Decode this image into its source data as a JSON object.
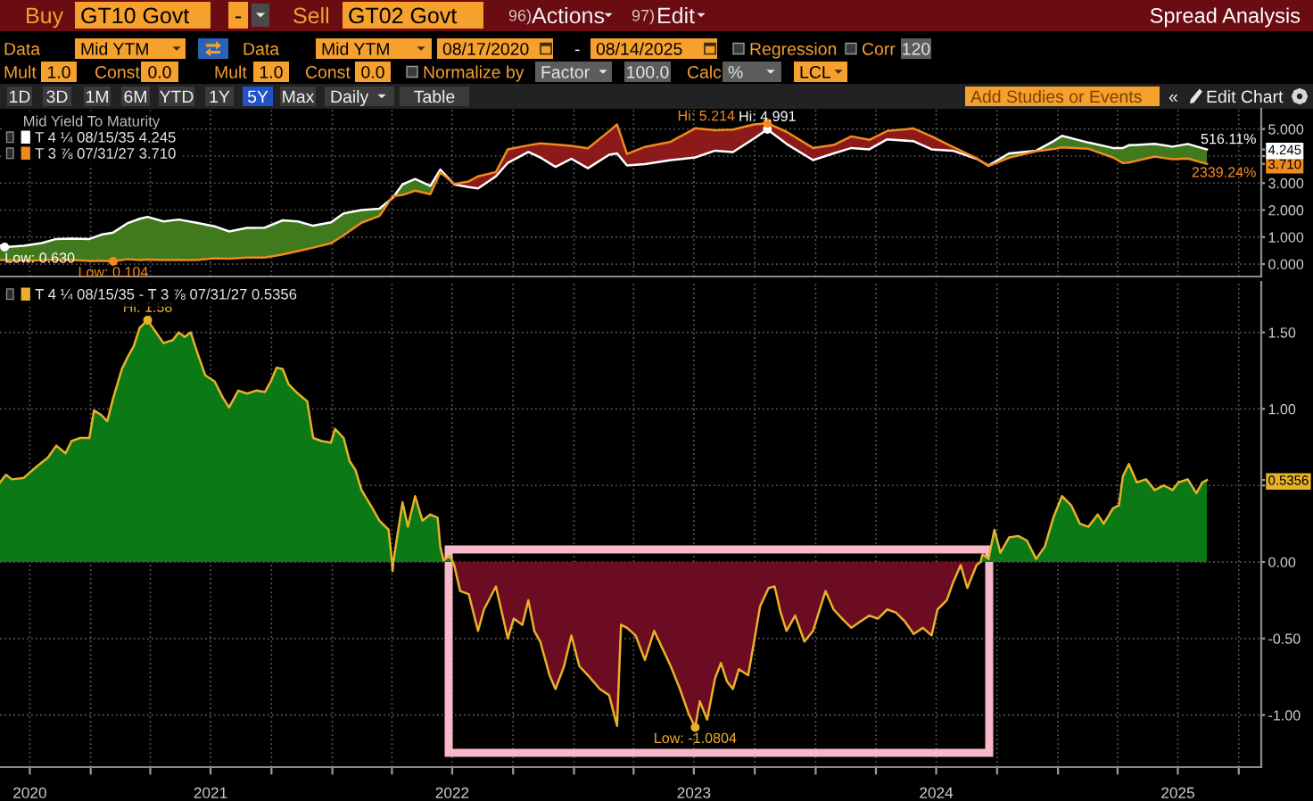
{
  "chart_data": [
    {
      "type": "other",
      "title": "Spread Analysis",
      "annotations": [
        "Buy",
        "GT10 Govt",
        "-",
        "Sell",
        "GT02 Govt",
        "96)",
        "Actions",
        "97)",
        "Edit",
        "Data",
        "Mid YTM",
        "Data",
        "Mid YTM",
        "08/17/2020",
        "-",
        "08/14/2025",
        "Regression",
        "Corr",
        "120",
        "Mult",
        "1.0",
        "Const",
        "0.0",
        "Mult",
        "1.0",
        "Const",
        "0.0",
        "Normalize by",
        "Factor",
        "100.0",
        "Calc",
        "%",
        "LCL",
        "1D",
        "3D",
        "1M",
        "6M",
        "YTD",
        "1Y",
        "5Y",
        "Max",
        "Daily",
        "Table",
        "Add Studies or Events",
        "«",
        "Edit Chart"
      ]
    },
    {
      "type": "line",
      "legend": "top left",
      "legend_title": "Mid Yield To Maturity",
      "grid": true,
      "tick_labels": "y",
      "xlim": [
        "2020-08-17",
        "2025-11-04"
      ],
      "ylim": [
        -0.46,
        5.75
      ],
      "xticks": [
        "2020-10-01",
        "2021-01-01",
        "2021-04-01",
        "2021-07-01",
        "2021-10-01",
        "2022-01-01",
        "2022-04-01",
        "2022-07-01",
        "2022-10-01",
        "2023-01-01",
        "2023-04-01",
        "2023-07-01",
        "2023-10-01",
        "2024-01-01",
        "2024-04-01",
        "2024-07-01",
        "2024-10-01",
        "2025-01-01",
        "2025-04-01",
        "2025-07-01",
        "2025-10-01"
      ],
      "yticks": [
        {
          "value": 0,
          "label": "0.000"
        },
        {
          "value": 1,
          "label": "1.000"
        },
        {
          "value": 2,
          "label": "2.000"
        },
        {
          "value": 3,
          "label": "3.000"
        },
        {
          "value": 3.71,
          "label": "3.710"
        },
        {
          "value": 4,
          "label": null
        },
        {
          "value": 4.245,
          "label": "4.245"
        },
        {
          "value": 5,
          "label": "5.000"
        }
      ],
      "x": [
        "2020-08-17",
        "2020-08-24",
        "2020-09-22",
        "2020-10-19",
        "2020-11-10",
        "2020-12-03",
        "2020-12-30",
        "2021-01-17",
        "2021-02-04",
        "2021-02-26",
        "2021-03-16",
        "2021-03-28",
        "2021-04-21",
        "2021-05-14",
        "2021-06-10",
        "2021-07-07",
        "2021-07-29",
        "2021-08-25",
        "2021-09-21",
        "2021-10-18",
        "2021-11-10",
        "2021-12-03",
        "2021-12-30",
        "2022-01-18",
        "2022-02-14",
        "2022-03-13",
        "2022-04-02",
        "2022-04-17",
        "2022-05-06",
        "2022-05-29",
        "2022-06-13",
        "2022-07-04",
        "2022-07-26",
        "2022-08-09",
        "2022-09-05",
        "2022-09-23",
        "2022-10-24",
        "2022-11-11",
        "2022-12-04",
        "2022-12-28",
        "2023-01-22",
        "2023-02-23",
        "2023-03-07",
        "2023-03-22",
        "2023-04-18",
        "2023-05-27",
        "2023-07-03",
        "2023-08-02",
        "2023-08-29",
        "2023-09-30",
        "2023-10-20",
        "2023-11-18",
        "2023-12-28",
        "2024-01-28",
        "2024-02-24",
        "2024-03-22",
        "2024-04-18",
        "2024-05-28",
        "2024-06-24",
        "2024-07-26",
        "2024-08-31",
        "2024-09-18",
        "2024-10-19",
        "2024-11-29",
        "2024-12-25",
        "2025-01-07",
        "2025-02-16",
        "2025-03-25",
        "2025-04-09",
        "2025-04-18",
        "2025-05-27",
        "2025-06-23",
        "2025-07-16",
        "2025-08-14"
      ],
      "series": [
        {
          "type": "area",
          "color": "#417a1c",
          "values": [
            null,
            null,
            null,
            null,
            null,
            null,
            null,
            null,
            null,
            null,
            null,
            null,
            null,
            null,
            null,
            null,
            null,
            null,
            null,
            null,
            null,
            null,
            null,
            null,
            null,
            null,
            null,
            null,
            null,
            null,
            null,
            null,
            null,
            null,
            null,
            null,
            null,
            null,
            null,
            null,
            null,
            null,
            null,
            null,
            null,
            null,
            null,
            null,
            null,
            null,
            null,
            null,
            null,
            null,
            null,
            null,
            null,
            null,
            null,
            null,
            null,
            null,
            null,
            null,
            null,
            null,
            null,
            null,
            null,
            null,
            null,
            null,
            null,
            null
          ],
          "lower": [
            0.15,
            0.15,
            0.13,
            0.14,
            0.17,
            0.15,
            0.12,
            0.13,
            0.104,
            0.18,
            0.15,
            0.17,
            0.15,
            0.15,
            0.15,
            0.22,
            0.2,
            0.24,
            0.24,
            0.36,
            0.48,
            0.61,
            0.77,
            1.07,
            1.53,
            1.78,
            2.51,
            2.56,
            2.72,
            2.59,
            3.4,
            2.97,
            null,
            null,
            null,
            null,
            null,
            null,
            null,
            null,
            null,
            null,
            null,
            null,
            null,
            null,
            null,
            null,
            null,
            null,
            null,
            null,
            null,
            null,
            null,
            null,
            null,
            null,
            null,
            null,
            3.92,
            3.63,
            3.94,
            4.18,
            4.26,
            4.32,
            4.27,
            3.95,
            3.74,
            3.76,
            3.98,
            3.88,
            3.91,
            3.71
          ],
          "upper": [
            0.69,
            0.63,
            0.68,
            0.78,
            0.93,
            0.94,
            0.93,
            1.09,
            1.17,
            1.52,
            1.68,
            1.75,
            1.58,
            1.65,
            1.53,
            1.4,
            1.21,
            1.34,
            1.35,
            1.62,
            1.58,
            1.42,
            1.55,
            1.88,
            2.0,
            2.05,
            2.45,
            2.95,
            3.15,
            2.9,
            3.5,
            2.95,
            null,
            null,
            null,
            null,
            null,
            null,
            null,
            null,
            null,
            null,
            null,
            null,
            null,
            null,
            null,
            null,
            null,
            null,
            null,
            null,
            null,
            null,
            null,
            null,
            null,
            null,
            null,
            null,
            3.9,
            3.65,
            4.1,
            4.2,
            4.55,
            4.75,
            4.5,
            4.3,
            4.3,
            4.4,
            4.45,
            4.35,
            4.45,
            4.245
          ]
        },
        {
          "type": "area",
          "color": "#8c1a1a",
          "values": [
            null,
            null,
            null,
            null,
            null,
            null,
            null,
            null,
            null,
            null,
            null,
            null,
            null,
            null,
            null,
            null,
            null,
            null,
            null,
            null,
            null,
            null,
            null,
            null,
            null,
            null,
            null,
            null,
            null,
            null,
            null,
            null,
            null,
            null,
            null,
            null,
            null,
            null,
            null,
            null,
            null,
            null,
            null,
            null,
            null,
            null,
            null,
            null,
            null,
            null,
            null,
            null,
            null,
            null,
            null,
            null,
            null,
            null,
            null,
            null,
            null,
            null,
            null,
            null,
            null,
            null,
            null,
            null,
            null,
            null,
            null,
            null,
            null,
            null
          ],
          "lower": [
            null,
            null,
            null,
            null,
            null,
            null,
            null,
            null,
            null,
            null,
            null,
            null,
            null,
            null,
            null,
            null,
            null,
            null,
            null,
            null,
            null,
            null,
            null,
            null,
            null,
            null,
            null,
            null,
            null,
            null,
            null,
            2.95,
            2.85,
            2.8,
            3.25,
            3.75,
            4.15,
            3.95,
            3.6,
            3.9,
            3.55,
            4.05,
            4.1,
            3.65,
            3.7,
            3.85,
            3.95,
            4.2,
            4.15,
            4.65,
            4.991,
            4.45,
            3.85,
            4.1,
            4.3,
            4.25,
            4.62,
            4.55,
            4.25,
            4.2,
            3.9,
            null,
            null,
            null,
            null,
            null,
            null,
            null,
            null,
            null,
            null,
            null,
            null,
            null
          ],
          "upper": [
            null,
            null,
            null,
            null,
            null,
            null,
            null,
            null,
            null,
            null,
            null,
            null,
            null,
            null,
            null,
            null,
            null,
            null,
            null,
            null,
            null,
            null,
            null,
            null,
            null,
            null,
            null,
            null,
            null,
            null,
            null,
            2.97,
            3.06,
            3.25,
            3.41,
            4.25,
            4.4,
            4.47,
            4.43,
            4.38,
            4.29,
            4.92,
            5.17,
            4.08,
            4.34,
            4.53,
            5.03,
            4.96,
            4.98,
            5.17,
            5.214,
            4.9,
            4.3,
            4.41,
            4.73,
            4.6,
            4.93,
            5.02,
            4.73,
            4.34,
            3.92,
            null,
            null,
            null,
            null,
            null,
            null,
            null,
            null,
            null,
            null,
            null,
            null,
            null
          ]
        },
        {
          "name": "T 4 ¼ 08/15/35 4.245",
          "type": "line",
          "color": "#ffffff",
          "values": [
            0.69,
            0.63,
            0.68,
            0.78,
            0.93,
            0.94,
            0.93,
            1.09,
            1.17,
            1.52,
            1.68,
            1.75,
            1.58,
            1.65,
            1.53,
            1.4,
            1.21,
            1.34,
            1.35,
            1.62,
            1.58,
            1.42,
            1.55,
            1.88,
            2.0,
            2.05,
            2.45,
            2.95,
            3.15,
            2.9,
            3.5,
            2.95,
            2.85,
            2.8,
            3.25,
            3.75,
            4.15,
            3.95,
            3.6,
            3.9,
            3.55,
            4.05,
            4.1,
            3.65,
            3.7,
            3.85,
            3.95,
            4.2,
            4.15,
            4.65,
            4.991,
            4.45,
            3.85,
            4.1,
            4.3,
            4.25,
            4.62,
            4.55,
            4.25,
            4.2,
            3.9,
            3.65,
            4.1,
            4.2,
            4.55,
            4.75,
            4.5,
            4.3,
            4.3,
            4.4,
            4.45,
            4.35,
            4.45,
            4.245
          ]
        },
        {
          "name": "T 3 ⅞ 07/31/27 3.710",
          "type": "line",
          "color": "#f08a1d",
          "values": [
            0.15,
            0.15,
            0.13,
            0.14,
            0.17,
            0.15,
            0.12,
            0.13,
            0.104,
            0.18,
            0.15,
            0.17,
            0.15,
            0.15,
            0.15,
            0.22,
            0.2,
            0.24,
            0.24,
            0.36,
            0.48,
            0.61,
            0.77,
            1.07,
            1.53,
            1.78,
            2.51,
            2.56,
            2.72,
            2.59,
            3.4,
            2.97,
            3.06,
            3.25,
            3.41,
            4.25,
            4.4,
            4.47,
            4.43,
            4.38,
            4.29,
            4.92,
            5.17,
            4.08,
            4.34,
            4.53,
            5.03,
            4.96,
            4.98,
            5.17,
            5.214,
            4.9,
            4.3,
            4.41,
            4.73,
            4.6,
            4.93,
            5.02,
            4.73,
            4.34,
            3.92,
            3.63,
            3.94,
            4.18,
            4.26,
            4.32,
            4.27,
            3.95,
            3.74,
            3.76,
            3.98,
            3.88,
            3.91,
            3.71
          ]
        }
      ],
      "annotations": [
        {
          "text": "Low: 0.630",
          "x": "2020-08-24",
          "y": 0.63
        },
        {
          "text": "Low: 0.104",
          "x": "2021-02-04",
          "y": 0.104
        },
        {
          "text": "Hi: 4.991",
          "x": "2023-10-20",
          "y": 4.991
        },
        {
          "text": "Hi: 5.214",
          "x": "2023-10-20",
          "y": 5.214
        },
        {
          "text": "516.11%",
          "x": "2025-08-14",
          "y": 4.245
        },
        {
          "text": "2339.24%",
          "x": "2025-08-14",
          "y": 3.71
        }
      ]
    },
    {
      "type": "line",
      "legend": "top left",
      "grid": true,
      "xlim": [
        "2020-08-17",
        "2025-11-04"
      ],
      "ylim": [
        -1.34,
        1.83
      ],
      "xticks": [
        {
          "value": "2020-10-01",
          "label": "2020"
        },
        {
          "value": "2021-01-01",
          "label": null
        },
        {
          "value": "2021-04-01",
          "label": null
        },
        {
          "value": "2021-07-01",
          "label": "2021"
        },
        {
          "value": "2021-10-01",
          "label": null
        },
        {
          "value": "2022-01-01",
          "label": null
        },
        {
          "value": "2022-04-01",
          "label": null
        },
        {
          "value": "2022-07-01",
          "label": "2022"
        },
        {
          "value": "2022-10-01",
          "label": null
        },
        {
          "value": "2023-01-01",
          "label": null
        },
        {
          "value": "2023-04-01",
          "label": null
        },
        {
          "value": "2023-07-01",
          "label": "2023"
        },
        {
          "value": "2023-10-01",
          "label": null
        },
        {
          "value": "2024-01-01",
          "label": null
        },
        {
          "value": "2024-04-01",
          "label": null
        },
        {
          "value": "2024-07-01",
          "label": "2024"
        },
        {
          "value": "2024-10-01",
          "label": null
        },
        {
          "value": "2025-01-01",
          "label": null
        },
        {
          "value": "2025-04-01",
          "label": null
        },
        {
          "value": "2025-07-01",
          "label": "2025"
        },
        {
          "value": "2025-10-01",
          "label": null
        }
      ],
      "yticks": [
        {
          "value": -1,
          "label": "-1.00"
        },
        {
          "value": -0.5,
          "label": "-0.50"
        },
        {
          "value": 0,
          "label": "0.00"
        },
        {
          "value": 0.5,
          "label": null
        },
        {
          "value": 0.5356,
          "label": "0.5356"
        },
        {
          "value": 1,
          "label": "1.00"
        },
        {
          "value": 1.5,
          "label": "1.50"
        }
      ],
      "x": [
        "2020-08-17",
        "2020-08-26",
        "2020-09-04",
        "2020-09-22",
        "2020-10-05",
        "2020-10-19",
        "2020-10-28",
        "2020-11-10",
        "2020-11-24",
        "2020-12-03",
        "2020-12-16",
        "2020-12-30",
        "2021-01-06",
        "2021-01-17",
        "2021-01-26",
        "2021-02-04",
        "2021-02-17",
        "2021-02-26",
        "2021-03-07",
        "2021-03-16",
        "2021-03-28",
        "2021-04-08",
        "2021-04-21",
        "2021-05-05",
        "2021-05-14",
        "2021-05-23",
        "2021-06-01",
        "2021-06-10",
        "2021-06-23",
        "2021-07-07",
        "2021-07-20",
        "2021-07-29",
        "2021-08-12",
        "2021-08-25",
        "2021-09-08",
        "2021-09-21",
        "2021-09-30",
        "2021-10-09",
        "2021-10-18",
        "2021-10-27",
        "2021-11-10",
        "2021-11-24",
        "2021-12-03",
        "2021-12-16",
        "2021-12-30",
        "2022-01-05",
        "2022-01-18",
        "2022-01-27",
        "2022-02-05",
        "2022-02-14",
        "2022-02-28",
        "2022-03-13",
        "2022-03-27",
        "2022-04-01",
        "2022-04-02",
        "2022-04-03",
        "2022-04-08",
        "2022-04-17",
        "2022-04-25",
        "2022-05-06",
        "2022-05-17",
        "2022-05-29",
        "2022-06-09",
        "2022-06-13",
        "2022-06-18",
        "2022-06-27",
        "2022-07-02",
        "2022-07-04",
        "2022-07-13",
        "2022-07-26",
        "2022-08-09",
        "2022-08-18",
        "2022-09-05",
        "2022-09-14",
        "2022-09-23",
        "2022-10-02",
        "2022-10-15",
        "2022-10-24",
        "2022-11-02",
        "2022-11-11",
        "2022-11-25",
        "2022-12-04",
        "2022-12-17",
        "2022-12-28",
        "2023-01-09",
        "2023-01-22",
        "2023-02-09",
        "2023-02-23",
        "2023-03-07",
        "2023-03-13",
        "2023-03-22",
        "2023-04-04",
        "2023-04-18",
        "2023-05-02",
        "2023-05-14",
        "2023-05-27",
        "2023-06-10",
        "2023-06-23",
        "2023-07-03",
        "2023-07-10",
        "2023-07-21",
        "2023-08-02",
        "2023-08-11",
        "2023-08-20",
        "2023-08-29",
        "2023-09-07",
        "2023-09-21",
        "2023-09-30",
        "2023-10-09",
        "2023-10-22",
        "2023-10-31",
        "2023-11-09",
        "2023-11-18",
        "2023-12-01",
        "2023-12-15",
        "2023-12-28",
        "2024-01-10",
        "2024-01-16",
        "2024-01-28",
        "2024-02-10",
        "2024-02-24",
        "2024-03-08",
        "2024-03-22",
        "2024-04-04",
        "2024-04-18",
        "2024-05-01",
        "2024-05-15",
        "2024-05-28",
        "2024-06-11",
        "2024-06-24",
        "2024-07-03",
        "2024-07-17",
        "2024-07-26",
        "2024-08-07",
        "2024-08-17",
        "2024-08-31",
        "2024-09-06",
        "2024-09-09",
        "2024-09-18",
        "2024-09-27",
        "2024-10-06",
        "2024-10-19",
        "2024-11-02",
        "2024-11-15",
        "2024-11-29",
        "2024-12-12",
        "2024-12-25",
        "2025-01-07",
        "2025-01-21",
        "2025-02-03",
        "2025-02-16",
        "2025-03-02",
        "2025-03-11",
        "2025-03-25",
        "2025-04-03",
        "2025-04-09",
        "2025-04-18",
        "2025-04-30",
        "2025-05-14",
        "2025-05-27",
        "2025-06-10",
        "2025-06-23",
        "2025-07-02",
        "2025-07-16",
        "2025-07-29",
        "2025-08-07",
        "2025-08-14"
      ],
      "series": [
        {
          "type": "area",
          "color": "#0b7a16",
          "values": [
            0.52,
            0.57,
            0.54,
            0.55,
            0.6,
            0.65,
            0.68,
            0.76,
            0.71,
            0.79,
            0.81,
            0.81,
            0.99,
            0.96,
            0.92,
            1.07,
            1.26,
            1.34,
            1.41,
            1.53,
            1.58,
            1.51,
            1.43,
            1.45,
            1.5,
            1.47,
            1.5,
            1.38,
            1.22,
            1.18,
            1.07,
            1.01,
            1.12,
            1.1,
            1.12,
            1.11,
            1.18,
            1.27,
            1.26,
            1.16,
            1.1,
            1.05,
            0.81,
            0.79,
            0.78,
            0.87,
            0.81,
            0.66,
            0.6,
            0.47,
            0.37,
            0.27,
            0.21,
            0,
            null,
            0,
            0.14,
            0.39,
            0.23,
            0.43,
            0.27,
            0.31,
            0.29,
            0.1,
            0.01,
            0.04,
            0,
            null,
            null,
            null,
            null,
            null,
            null,
            null,
            null,
            null,
            null,
            null,
            null,
            null,
            null,
            null,
            null,
            null,
            null,
            null,
            null,
            null,
            null,
            null,
            null,
            null,
            null,
            null,
            null,
            null,
            null,
            null,
            null,
            null,
            null,
            null,
            null,
            null,
            null,
            null,
            null,
            null,
            null,
            null,
            null,
            null,
            null,
            null,
            null,
            null,
            null,
            null,
            null,
            null,
            null,
            null,
            null,
            null,
            null,
            null,
            null,
            null,
            null,
            null,
            null,
            null,
            null,
            null,
            null,
            null,
            0,
            0.05,
            0.02,
            0.21,
            0.06,
            0.16,
            0.17,
            0.14,
            0.02,
            0.1,
            0.29,
            0.43,
            0.37,
            0.25,
            0.23,
            0.31,
            0.25,
            0.35,
            0.37,
            0.56,
            0.64,
            0.52,
            0.54,
            0.47,
            0.5,
            0.47,
            0.52,
            0.54,
            0.45,
            0.52,
            0.5356
          ]
        },
        {
          "type": "area",
          "color": "#6c0c22",
          "values": [
            null,
            null,
            null,
            null,
            null,
            null,
            null,
            null,
            null,
            null,
            null,
            null,
            null,
            null,
            null,
            null,
            null,
            null,
            null,
            null,
            null,
            null,
            null,
            null,
            null,
            null,
            null,
            null,
            null,
            null,
            null,
            null,
            null,
            null,
            null,
            null,
            null,
            null,
            null,
            null,
            null,
            null,
            null,
            null,
            null,
            null,
            null,
            null,
            null,
            null,
            null,
            null,
            null,
            null,
            null,
            null,
            null,
            null,
            null,
            null,
            null,
            null,
            null,
            null,
            null,
            null,
            0,
            -0.02,
            -0.19,
            -0.21,
            -0.45,
            -0.31,
            -0.16,
            -0.33,
            -0.5,
            -0.37,
            -0.41,
            -0.25,
            -0.45,
            -0.52,
            -0.74,
            -0.83,
            -0.68,
            -0.48,
            -0.68,
            -0.74,
            -0.83,
            -0.87,
            -1.07,
            -0.41,
            -0.43,
            -0.48,
            -0.64,
            -0.45,
            -0.56,
            -0.68,
            -0.83,
            -0.99,
            -1.0804,
            -0.91,
            -1.03,
            -0.76,
            -0.66,
            -0.78,
            -0.83,
            -0.7,
            -0.74,
            -0.52,
            -0.29,
            -0.17,
            -0.16,
            -0.33,
            -0.45,
            -0.35,
            -0.52,
            -0.45,
            -0.27,
            -0.19,
            -0.31,
            -0.37,
            -0.43,
            -0.39,
            -0.35,
            -0.37,
            -0.31,
            -0.33,
            -0.39,
            -0.47,
            -0.43,
            -0.48,
            -0.31,
            -0.25,
            -0.14,
            -0.02,
            -0.17,
            -0.02,
            0,
            null,
            null,
            null,
            null,
            null,
            null,
            null,
            null,
            null,
            null,
            null,
            null,
            null,
            null,
            null,
            null,
            null,
            null,
            null,
            null,
            null,
            null,
            null,
            null,
            null,
            null,
            null,
            null,
            null,
            null
          ]
        },
        {
          "name": "T 4 ¼ 08/15/35 - T 3 ⅞ 07/31/27 0.5356",
          "type": "line",
          "color": "#e8b12a",
          "values": [
            0.52,
            0.57,
            0.54,
            0.55,
            0.6,
            0.65,
            0.68,
            0.76,
            0.71,
            0.79,
            0.81,
            0.81,
            0.99,
            0.96,
            0.92,
            1.07,
            1.26,
            1.34,
            1.41,
            1.53,
            1.58,
            1.51,
            1.43,
            1.45,
            1.5,
            1.47,
            1.5,
            1.38,
            1.22,
            1.18,
            1.07,
            1.01,
            1.12,
            1.1,
            1.12,
            1.11,
            1.18,
            1.27,
            1.26,
            1.16,
            1.1,
            1.05,
            0.81,
            0.79,
            0.78,
            0.87,
            0.81,
            0.66,
            0.6,
            0.47,
            0.37,
            0.27,
            0.21,
            0,
            -0.06,
            0,
            0.14,
            0.39,
            0.23,
            0.43,
            0.27,
            0.31,
            0.29,
            0.1,
            0.01,
            0.04,
            0,
            -0.02,
            -0.19,
            -0.21,
            -0.45,
            -0.31,
            -0.16,
            -0.33,
            -0.5,
            -0.37,
            -0.41,
            -0.25,
            -0.45,
            -0.52,
            -0.74,
            -0.83,
            -0.68,
            -0.48,
            -0.68,
            -0.74,
            -0.83,
            -0.87,
            -1.07,
            -0.41,
            -0.43,
            -0.48,
            -0.64,
            -0.45,
            -0.56,
            -0.68,
            -0.83,
            -0.99,
            -1.0804,
            -0.91,
            -1.03,
            -0.76,
            -0.66,
            -0.78,
            -0.83,
            -0.7,
            -0.74,
            -0.52,
            -0.29,
            -0.17,
            -0.16,
            -0.33,
            -0.45,
            -0.35,
            -0.52,
            -0.45,
            -0.27,
            -0.19,
            -0.31,
            -0.37,
            -0.43,
            -0.39,
            -0.35,
            -0.37,
            -0.31,
            -0.33,
            -0.39,
            -0.47,
            -0.43,
            -0.48,
            -0.31,
            -0.25,
            -0.14,
            -0.02,
            -0.17,
            -0.02,
            0,
            0.05,
            0.02,
            0.21,
            0.06,
            0.16,
            0.17,
            0.14,
            0.02,
            0.1,
            0.29,
            0.43,
            0.37,
            0.25,
            0.23,
            0.31,
            0.25,
            0.35,
            0.37,
            0.56,
            0.64,
            0.52,
            0.54,
            0.47,
            0.5,
            0.47,
            0.52,
            0.54,
            0.45,
            0.52,
            0.5356
          ]
        }
      ],
      "annotations": [
        {
          "text": "Hi: 1.58",
          "x": "2021-03-28",
          "y": 1.58
        },
        {
          "text": "Low: -1.0804",
          "x": "2023-07-03",
          "y": -1.0804
        }
      ]
    }
  ]
}
